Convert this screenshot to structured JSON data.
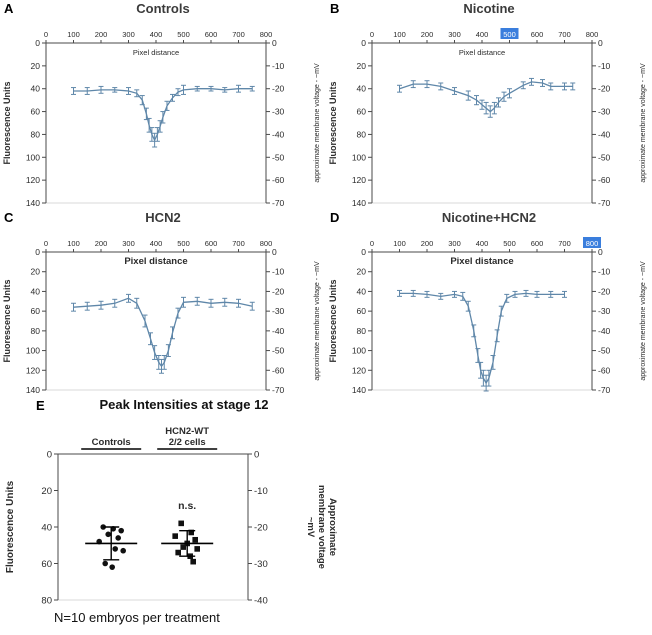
{
  "colors": {
    "line": "#5f87a9",
    "axis": "#4a4a4a",
    "text": "#2b2b2b",
    "frame": "#d8d8d8",
    "highlight": "#3a7edd",
    "marker": "#111111"
  },
  "chart_data": [
    {
      "type": "line",
      "letter": "A",
      "title": "Controls",
      "xlabel": "Pixel distance",
      "xlabel_emphasis": false,
      "ylabel_left": "Fluorescence Units",
      "ylabel_right": "approximate membrane voltage - ~mV",
      "xlim": [
        0,
        800
      ],
      "x_ticks": [
        0,
        100,
        200,
        300,
        400,
        500,
        600,
        700,
        800
      ],
      "ylim_left": [
        0,
        140
      ],
      "y_ticks_left": [
        0,
        20,
        40,
        60,
        80,
        100,
        120,
        140
      ],
      "y_ticks_right": [
        0,
        -10,
        -20,
        -30,
        -40,
        -50,
        -60,
        -70
      ],
      "highlighted_x_tick": null,
      "x": [
        100,
        150,
        200,
        250,
        300,
        330,
        350,
        365,
        375,
        385,
        395,
        405,
        415,
        425,
        440,
        460,
        480,
        500,
        550,
        600,
        650,
        700,
        750
      ],
      "y": [
        42,
        42,
        41,
        41,
        42,
        44,
        50,
        62,
        72,
        80,
        85,
        80,
        73,
        65,
        55,
        48,
        43,
        41,
        40,
        40,
        41,
        40,
        40
      ],
      "err": [
        3,
        3,
        3,
        2,
        3,
        3,
        4,
        5,
        6,
        6,
        6,
        6,
        5,
        5,
        4,
        3,
        3,
        4,
        2,
        2,
        2,
        3,
        2
      ]
    },
    {
      "type": "line",
      "letter": "B",
      "title": "Nicotine",
      "xlabel": "Pixel distance",
      "xlabel_emphasis": false,
      "ylabel_left": "Fluorescence Units",
      "ylabel_right": "approximate membrane voltage - ~mV",
      "xlim": [
        0,
        800
      ],
      "x_ticks": [
        0,
        100,
        200,
        300,
        400,
        500,
        600,
        700,
        800
      ],
      "ylim_left": [
        0,
        140
      ],
      "y_ticks_left": [
        0,
        20,
        40,
        60,
        80,
        100,
        120,
        140
      ],
      "y_ticks_right": [
        0,
        -10,
        -20,
        -30,
        -40,
        -50,
        -60,
        -70
      ],
      "highlighted_x_tick": 500,
      "x": [
        100,
        150,
        200,
        250,
        300,
        350,
        380,
        400,
        415,
        430,
        445,
        460,
        480,
        500,
        550,
        580,
        620,
        650,
        700,
        730
      ],
      "y": [
        40,
        36,
        36,
        38,
        42,
        46,
        50,
        54,
        57,
        60,
        57,
        52,
        47,
        44,
        37,
        34,
        35,
        38,
        38,
        38
      ],
      "err": [
        3,
        3,
        3,
        3,
        3,
        4,
        4,
        4,
        5,
        5,
        5,
        4,
        4,
        4,
        3,
        3,
        3,
        3,
        3,
        3
      ]
    },
    {
      "type": "line",
      "letter": "C",
      "title": "HCN2",
      "xlabel": "Pixel distance",
      "xlabel_emphasis": true,
      "ylabel_left": "Fluorescence Units",
      "ylabel_right": "approximate membrane voltage - ~mV",
      "xlim": [
        0,
        800
      ],
      "x_ticks": [
        0,
        100,
        200,
        300,
        400,
        500,
        600,
        700,
        800
      ],
      "ylim_left": [
        0,
        140
      ],
      "y_ticks_left": [
        0,
        20,
        40,
        60,
        80,
        100,
        120,
        140
      ],
      "y_ticks_right": [
        0,
        -10,
        -20,
        -30,
        -40,
        -50,
        -60,
        -70
      ],
      "highlighted_x_tick": null,
      "x": [
        100,
        150,
        200,
        250,
        300,
        330,
        360,
        380,
        395,
        410,
        420,
        430,
        445,
        460,
        480,
        500,
        550,
        600,
        650,
        700,
        750
      ],
      "y": [
        56,
        55,
        54,
        52,
        47,
        52,
        70,
        88,
        102,
        112,
        116,
        112,
        100,
        82,
        62,
        51,
        50,
        52,
        51,
        52,
        55
      ],
      "err": [
        4,
        4,
        4,
        4,
        4,
        5,
        6,
        6,
        7,
        7,
        7,
        7,
        6,
        6,
        5,
        5,
        4,
        4,
        4,
        4,
        4
      ]
    },
    {
      "type": "line",
      "letter": "D",
      "title": "Nicotine+HCN2",
      "xlabel": "Pixel distance",
      "xlabel_emphasis": true,
      "ylabel_left": "Fluorescence Units",
      "ylabel_right": "approximate membrane voltage - ~mV",
      "xlim": [
        0,
        800
      ],
      "x_ticks": [
        0,
        100,
        200,
        300,
        400,
        500,
        600,
        700,
        800
      ],
      "ylim_left": [
        0,
        140
      ],
      "y_ticks_left": [
        0,
        20,
        40,
        60,
        80,
        100,
        120,
        140
      ],
      "y_ticks_right": [
        0,
        -10,
        -20,
        -30,
        -40,
        -50,
        -60,
        -70
      ],
      "highlighted_x_tick": 800,
      "x": [
        100,
        150,
        200,
        250,
        300,
        330,
        350,
        370,
        385,
        395,
        405,
        415,
        425,
        440,
        455,
        470,
        490,
        520,
        560,
        600,
        650,
        700
      ],
      "y": [
        42,
        42,
        43,
        45,
        43,
        45,
        55,
        80,
        105,
        120,
        128,
        133,
        128,
        112,
        85,
        60,
        47,
        43,
        42,
        43,
        43,
        43
      ],
      "err": [
        3,
        3,
        3,
        3,
        3,
        4,
        5,
        6,
        7,
        8,
        8,
        8,
        8,
        7,
        6,
        5,
        4,
        3,
        3,
        3,
        3,
        3
      ]
    },
    {
      "type": "scatter",
      "letter": "E",
      "title": "Peak Intensities at stage 12",
      "ylabel_left": "Fluorescence Units",
      "ylabel_right": "Approximate\nmembrane voltage\n~mV",
      "ylim_left": [
        0,
        80
      ],
      "y_ticks_left": [
        0,
        20,
        40,
        60,
        80
      ],
      "y_ticks_right": [
        0,
        -10,
        -20,
        -30,
        -40
      ],
      "note": "N=10 embryos per treatment",
      "groups": [
        {
          "label": "Controls",
          "marker": "circle",
          "values": [
            40,
            41,
            42,
            44,
            46,
            48,
            52,
            53,
            60,
            62
          ],
          "mean": 49,
          "sd": 9,
          "annotation": ""
        },
        {
          "label": "HCN2-WT\n2/2 cells",
          "marker": "square",
          "values": [
            38,
            43,
            45,
            47,
            49,
            51,
            52,
            54,
            56,
            59
          ],
          "mean": 49,
          "sd": 7,
          "annotation": "n.s."
        }
      ]
    }
  ]
}
